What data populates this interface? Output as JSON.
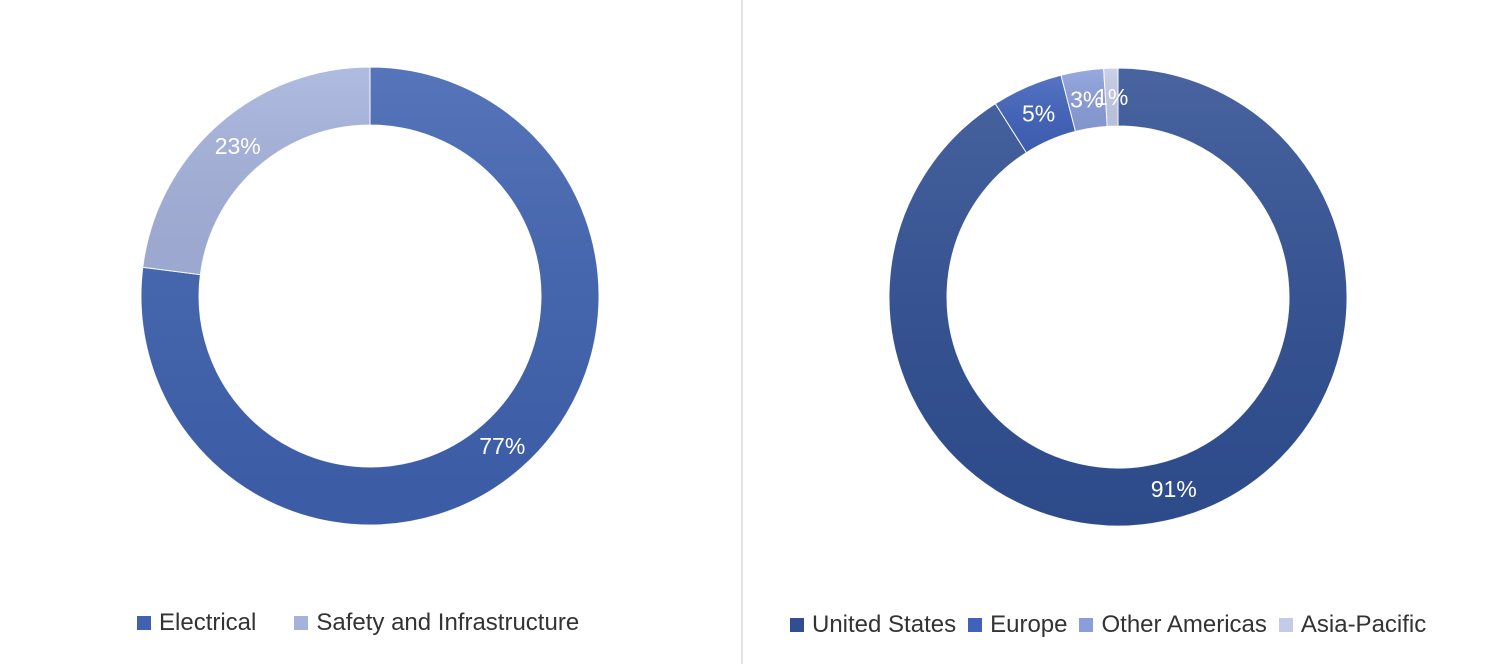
{
  "chart_data": [
    {
      "type": "pie",
      "variant": "donut",
      "title": "",
      "categories": [
        "Electrical",
        "Safety and Infrastructure"
      ],
      "values": [
        77,
        23
      ],
      "labels": [
        "77%",
        "23%"
      ],
      "colors": [
        "#3f62b0",
        "#a5b2dc"
      ],
      "legend_position": "bottom"
    },
    {
      "type": "pie",
      "variant": "donut",
      "title": "",
      "categories": [
        "United States",
        "Europe",
        "Other Americas",
        "Asia-Pacific"
      ],
      "values": [
        91,
        5,
        3,
        1
      ],
      "labels": [
        "91%",
        "5%",
        "3%",
        "1%"
      ],
      "colors": [
        "#304f93",
        "#4062bb",
        "#8b9edb",
        "#c4cbe6"
      ],
      "legend_position": "bottom"
    }
  ]
}
